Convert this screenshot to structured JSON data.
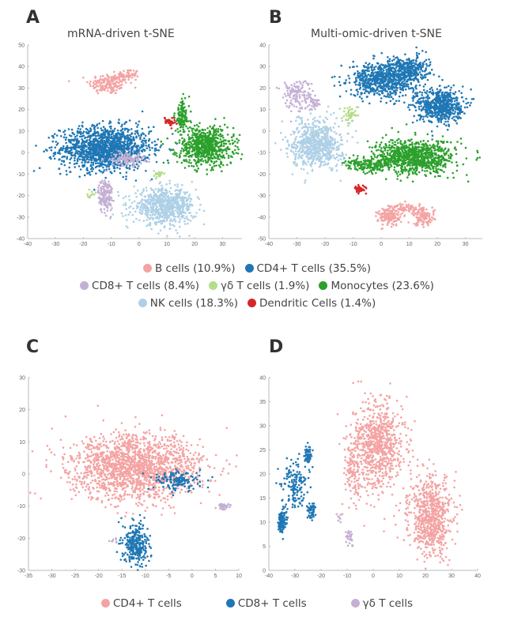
{
  "colors": {
    "b_cells": "#f4a3a3",
    "cd4_t": "#1f77b4",
    "cd8_t": "#c5b0d5",
    "gd_t": "#b5dc8a",
    "monocytes": "#2ca02c",
    "nk": "#aed0e6",
    "dendritic": "#d62728",
    "sub_cd4": "#f4a3a3",
    "sub_cd8": "#1f77b4",
    "sub_gd": "#c5b0d5"
  },
  "legend_top": [
    [
      {
        "label": "B cells (10.9%)",
        "color": "#f4a3a3"
      },
      {
        "label": "CD4+ T cells (35.5%)",
        "color": "#1f77b4"
      }
    ],
    [
      {
        "label": "CD8+ T cells  (8.4%)",
        "color": "#c5b0d5"
      },
      {
        "label": "γδ T cells (1.9%)",
        "color": "#b5dc8a"
      },
      {
        "label": "Monocytes (23.6%)",
        "color": "#2ca02c"
      }
    ],
    [
      {
        "label": "NK cells (18.3%)",
        "color": "#aed0e6"
      },
      {
        "label": "Dendritic Cells (1.4%)",
        "color": "#d62728"
      }
    ]
  ],
  "legend_bottom": [
    {
      "label": "CD4+ T cells",
      "color": "#f4a3a3"
    },
    {
      "label": "CD8+ T cells",
      "color": "#1f77b4"
    },
    {
      "label": "γδ T cells",
      "color": "#c5b0d5"
    }
  ],
  "chart_data": [
    {
      "id": "A",
      "type": "scatter",
      "letter": "A",
      "title": "mRNA-driven t-SNE",
      "xlim": [
        -40,
        37
      ],
      "ylim": [
        -40,
        50
      ],
      "xticks": [
        -40,
        -30,
        -20,
        -10,
        0,
        10,
        20,
        30
      ],
      "yticks": [
        -40,
        -30,
        -20,
        -10,
        0,
        10,
        20,
        30,
        40,
        50
      ],
      "series": [
        {
          "name": "B cells",
          "color": "#f4a3a3",
          "clusters": [
            {
              "cx": -11,
              "cy": 32,
              "sx": 3.5,
              "sy": 2.5,
              "n": 160
            },
            {
              "cx": -4,
              "cy": 36,
              "sx": 2,
              "sy": 1.5,
              "n": 60
            }
          ]
        },
        {
          "name": "CD4+ T cells",
          "color": "#1f77b4",
          "clusters": [
            {
              "cx": -12,
              "cy": 2,
              "sx": 8,
              "sy": 5,
              "n": 1400
            }
          ]
        },
        {
          "name": "CD8+ T cells",
          "color": "#c5b0d5",
          "clusters": [
            {
              "cx": -4,
              "cy": -3,
              "sx": 3,
              "sy": 1.5,
              "n": 110
            },
            {
              "cx": -12,
              "cy": -20,
              "sx": 1.3,
              "sy": 4,
              "n": 160
            }
          ]
        },
        {
          "name": "γδ T cells",
          "color": "#b5dc8a",
          "clusters": [
            {
              "cx": 7,
              "cy": -10,
              "sx": 0.8,
              "sy": 0.8,
              "n": 30
            },
            {
              "cx": -17,
              "cy": -20,
              "sx": 0.8,
              "sy": 1,
              "n": 12
            }
          ]
        },
        {
          "name": "Monocytes",
          "color": "#2ca02c",
          "clusters": [
            {
              "cx": 24,
              "cy": 3,
              "sx": 5,
              "sy": 4.5,
              "n": 700
            },
            {
              "cx": 15.5,
              "cy": 17,
              "sx": 1.3,
              "sy": 4,
              "n": 120
            }
          ]
        },
        {
          "name": "NK cells",
          "color": "#aed0e6",
          "clusters": [
            {
              "cx": 9,
              "cy": -25,
              "sx": 5.5,
              "sy": 4,
              "n": 700
            }
          ]
        },
        {
          "name": "Dendritic Cells",
          "color": "#d62728",
          "clusters": [
            {
              "cx": 11,
              "cy": 14.5,
              "sx": 1,
              "sy": 1,
              "n": 35
            }
          ]
        }
      ]
    },
    {
      "id": "B",
      "type": "scatter",
      "letter": "B",
      "title": "Multi-omic-driven t-SNE",
      "xlim": [
        -40,
        36
      ],
      "ylim": [
        -50,
        40
      ],
      "xticks": [
        -40,
        -30,
        -20,
        -10,
        0,
        10,
        20,
        30
      ],
      "yticks": [
        -50,
        -40,
        -30,
        -20,
        -10,
        0,
        10,
        20,
        30,
        40
      ],
      "series": [
        {
          "name": "B cells",
          "color": "#f4a3a3",
          "clusters": [
            {
              "cx": 3,
              "cy": -40,
              "sx": 2,
              "sy": 2,
              "n": 140
            },
            {
              "cx": 9,
              "cy": -36,
              "sx": 3,
              "sy": 1.2,
              "n": 90
            },
            {
              "cx": 15,
              "cy": -40,
              "sx": 2,
              "sy": 2,
              "n": 110
            }
          ]
        },
        {
          "name": "CD4+ T cells",
          "color": "#1f77b4",
          "clusters": [
            {
              "cx": 1,
              "cy": 24,
              "sx": 6,
              "sy": 4,
              "n": 700
            },
            {
              "cx": 10,
              "cy": 29,
              "sx": 3.5,
              "sy": 3,
              "n": 250
            },
            {
              "cx": 21,
              "cy": 12,
              "sx": 4,
              "sy": 4,
              "n": 600
            }
          ]
        },
        {
          "name": "CD8+ T cells",
          "color": "#c5b0d5",
          "clusters": [
            {
              "cx": -30,
              "cy": 17,
              "sx": 3,
              "sy": 4,
              "n": 140
            },
            {
              "cx": -24,
              "cy": 13,
              "sx": 1,
              "sy": 1,
              "n": 30
            }
          ]
        },
        {
          "name": "γδ T cells",
          "color": "#b5dc8a",
          "clusters": [
            {
              "cx": -11,
              "cy": 8,
              "sx": 1.5,
              "sy": 2,
              "n": 45
            }
          ]
        },
        {
          "name": "Monocytes",
          "color": "#2ca02c",
          "clusters": [
            {
              "cx": 12,
              "cy": -12,
              "sx": 7,
              "sy": 4,
              "n": 900
            },
            {
              "cx": -5,
              "cy": -16,
              "sx": 4,
              "sy": 1.5,
              "n": 160
            }
          ]
        },
        {
          "name": "NK cells",
          "color": "#aed0e6",
          "clusters": [
            {
              "cx": -23,
              "cy": -6,
              "sx": 4.5,
              "sy": 5.5,
              "n": 700
            }
          ]
        },
        {
          "name": "Dendritic Cells",
          "color": "#d62728",
          "clusters": [
            {
              "cx": -7.5,
              "cy": -27,
              "sx": 1,
              "sy": 0.9,
              "n": 45
            }
          ]
        }
      ]
    },
    {
      "id": "C",
      "type": "scatter",
      "letter": "C",
      "title": "",
      "xlim": [
        -35,
        10
      ],
      "ylim": [
        -30,
        30
      ],
      "xticks": [
        -35,
        -30,
        -25,
        -20,
        -15,
        -10,
        -5,
        0,
        5,
        10
      ],
      "yticks": [
        -30,
        -20,
        -10,
        0,
        10,
        20,
        30
      ],
      "series": [
        {
          "name": "CD4+ T cells",
          "color": "#f4a3a3",
          "clusters": [
            {
              "cx": -12,
              "cy": 2,
              "sx": 7,
              "sy": 5,
              "n": 1700
            }
          ]
        },
        {
          "name": "CD8+ T cells",
          "color": "#1f77b4",
          "clusters": [
            {
              "cx": -12,
              "cy": -22,
              "sx": 1.3,
              "sy": 3.5,
              "n": 300
            },
            {
              "cx": -3,
              "cy": -2,
              "sx": 2.5,
              "sy": 1.5,
              "n": 150
            }
          ]
        },
        {
          "name": "γδ T cells",
          "color": "#c5b0d5",
          "clusters": [
            {
              "cx": 7,
              "cy": -10,
              "sx": 0.7,
              "sy": 0.6,
              "n": 30
            },
            {
              "cx": -17,
              "cy": -21,
              "sx": 0.5,
              "sy": 0.4,
              "n": 8
            }
          ]
        }
      ]
    },
    {
      "id": "D",
      "type": "scatter",
      "letter": "D",
      "title": "",
      "xlim": [
        -40,
        40
      ],
      "ylim": [
        0,
        40
      ],
      "xticks": [
        -40,
        -30,
        -20,
        -10,
        0,
        10,
        20,
        30,
        40
      ],
      "yticks": [
        0,
        5,
        10,
        15,
        20,
        25,
        30,
        35,
        40
      ],
      "series": [
        {
          "name": "CD4+ T cells",
          "color": "#f4a3a3",
          "clusters": [
            {
              "cx": 2,
              "cy": 26,
              "sx": 5,
              "sy": 4.5,
              "n": 800
            },
            {
              "cx": 22,
              "cy": 11,
              "sx": 4,
              "sy": 4,
              "n": 700
            },
            {
              "cx": -8,
              "cy": 20,
              "sx": 1.5,
              "sy": 3,
              "n": 100
            }
          ]
        },
        {
          "name": "CD8+ T cells",
          "color": "#1f77b4",
          "clusters": [
            {
              "cx": -35,
              "cy": 10,
              "sx": 0.8,
              "sy": 1.2,
              "n": 120
            },
            {
              "cx": -30,
              "cy": 18,
              "sx": 2.5,
              "sy": 2.5,
              "n": 150
            },
            {
              "cx": -25,
              "cy": 24,
              "sx": 0.8,
              "sy": 0.9,
              "n": 60
            },
            {
              "cx": -23.5,
              "cy": 12.5,
              "sx": 0.8,
              "sy": 0.8,
              "n": 50
            }
          ]
        },
        {
          "name": "γδ T cells",
          "color": "#c5b0d5",
          "clusters": [
            {
              "cx": -9,
              "cy": 7,
              "sx": 0.6,
              "sy": 0.9,
              "n": 30
            },
            {
              "cx": -13,
              "cy": 11,
              "sx": 0.5,
              "sy": 0.4,
              "n": 8
            }
          ]
        }
      ]
    }
  ]
}
